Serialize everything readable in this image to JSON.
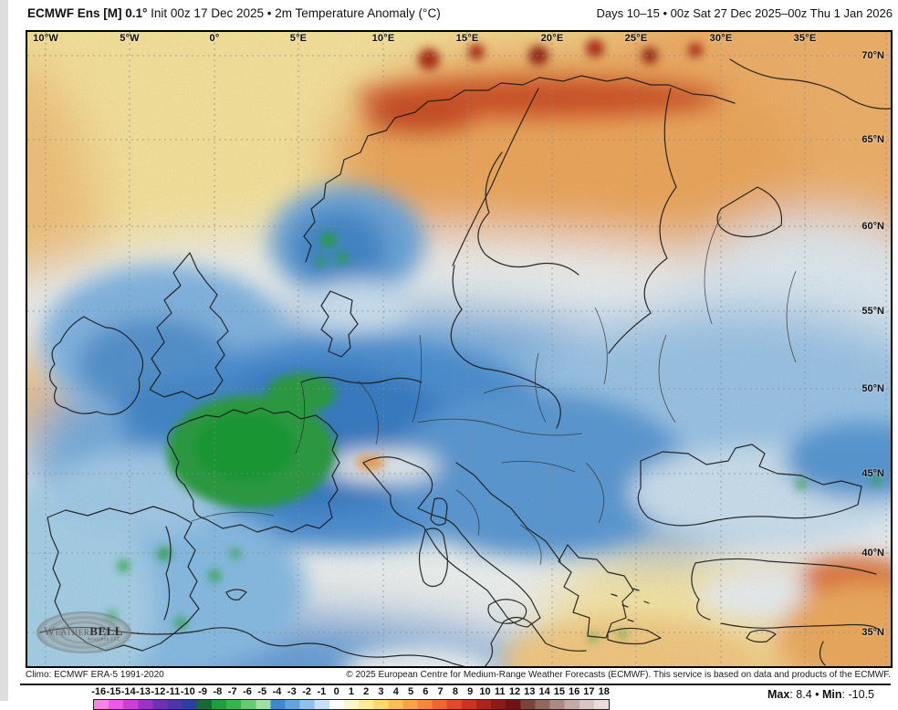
{
  "header": {
    "title_bold": "ECMWF Ens [M] 0.1°",
    "title_rest": " Init 00z 17 Dec 2025 • 2m Temperature Anomaly (°C)",
    "period": "Days 10–15 • 00z Sat 27 Dec 2025–00z Thu 1 Jan 2026"
  },
  "map": {
    "lon_labels": [
      "10°W",
      "5°W",
      "0°",
      "5°E",
      "10°E",
      "15°E",
      "20°E",
      "25°E",
      "30°E",
      "35°E"
    ],
    "lat_labels": [
      "70°N",
      "65°N",
      "60°N",
      "55°N",
      "50°N",
      "45°N",
      "40°N",
      "35°N"
    ],
    "logo": {
      "brand_light": "Weather",
      "brand_bold": "BELL",
      "subtext": "Analytics LLC"
    }
  },
  "footer": {
    "climo": "Climo: ECMWF ERA-5 1991-2020",
    "copyright": "© 2025 European Centre for Medium-Range Weather Forecasts (ECMWF). This service is based on data and products of the ECMWF."
  },
  "colorbar": {
    "ticks": [
      "-16",
      "-15",
      "-14",
      "-13",
      "-12",
      "-11",
      "-10",
      "-9",
      "-8",
      "-7",
      "-6",
      "-5",
      "-4",
      "-3",
      "-2",
      "-1",
      "0",
      "1",
      "2",
      "3",
      "4",
      "5",
      "6",
      "7",
      "8",
      "9",
      "10",
      "11",
      "12",
      "13",
      "14",
      "15",
      "16",
      "17",
      "18"
    ],
    "colors": [
      "#f783e3",
      "#ee58e4",
      "#cb3fd4",
      "#9c33c9",
      "#6f2fb4",
      "#4f35a8",
      "#2b3f9e",
      "#176a36",
      "#1f9e3c",
      "#36b54e",
      "#67ca72",
      "#a0dfa6",
      "#3f88d0",
      "#63a4dc",
      "#8fc1ec",
      "#c4e0f6",
      "#ffffff",
      "#fdf6c8",
      "#fdeb96",
      "#fcd968",
      "#fbc052",
      "#f9a446",
      "#f6863c",
      "#ef6633",
      "#e2482a",
      "#cb3222",
      "#ab251d",
      "#8a1b17",
      "#6f1412",
      "#7c423c",
      "#936660",
      "#ab8a84",
      "#c4aaa5",
      "#d9c6c2",
      "#e9dcd9"
    ],
    "max_label": "Max",
    "max_value": "8.4",
    "separator": "•",
    "min_label": "Min",
    "min_value": "-10.5"
  }
}
